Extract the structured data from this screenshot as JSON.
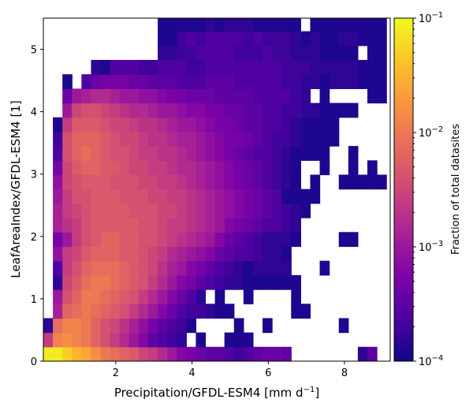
{
  "chart_data": {
    "type": "heatmap",
    "title": "",
    "xlabel": "Precipitation/GFDL-ESM4 [mm d",
    "xlabel_sup": "−1",
    "xlabel_end": "]",
    "ylabel": "LeafAreaIndex/GFDL-ESM4 [1]",
    "xlim": [
      0.1,
      9.2
    ],
    "ylim": [
      0,
      5.5
    ],
    "xticks": [
      {
        "value": 2,
        "label": "2"
      },
      {
        "value": 4,
        "label": "4"
      },
      {
        "value": 6,
        "label": "6"
      },
      {
        "value": 8,
        "label": "8"
      }
    ],
    "yticks": [
      {
        "value": 0,
        "label": "0"
      },
      {
        "value": 1,
        "label": "1"
      },
      {
        "value": 2,
        "label": "2"
      },
      {
        "value": 3,
        "label": "3"
      },
      {
        "value": 4,
        "label": "4"
      },
      {
        "value": 5,
        "label": "5"
      }
    ],
    "colorbar": {
      "label": "Fraction of total datasites",
      "scale": "log",
      "range": [
        0.0001,
        0.1
      ],
      "colormap": "plasma",
      "ticks": [
        {
          "value": 0.0001,
          "base": "10",
          "exp": "−4"
        },
        {
          "value": 0.001,
          "base": "10",
          "exp": "−3"
        },
        {
          "value": 0.01,
          "base": "10",
          "exp": "−2"
        },
        {
          "value": 0.1,
          "base": "10",
          "exp": "−1"
        }
      ]
    },
    "x_bin_edges": [
      0.1,
      0.35,
      0.6,
      0.85,
      1.1,
      1.35,
      1.6,
      1.85,
      2.1,
      2.35,
      2.6,
      2.85,
      3.1,
      3.35,
      3.6,
      3.85,
      4.1,
      4.35,
      4.6,
      4.85,
      5.1,
      5.35,
      5.6,
      5.85,
      6.1,
      6.35,
      6.6,
      6.85,
      7.1,
      7.35,
      7.6,
      7.85,
      8.1,
      8.35,
      8.6,
      8.85,
      9.1
    ],
    "y_bin_edges": [
      0.0,
      0.23,
      0.46,
      0.69,
      0.92,
      1.15,
      1.38,
      1.61,
      1.84,
      2.07,
      2.3,
      2.53,
      2.76,
      2.99,
      3.22,
      3.45,
      3.68,
      3.91,
      4.14,
      4.37,
      4.6,
      4.83,
      5.06,
      5.29,
      5.52
    ],
    "log10_fraction_rows_from_bottom": [
      [
        -1.1,
        -1.1,
        -1.3,
        -1.5,
        -1.6,
        -1.8,
        -2.0,
        -2.1,
        -2.2,
        -2.3,
        -2.5,
        -2.6,
        -2.8,
        -3.0,
        -3.2,
        -3.3,
        -3.4,
        -3.5,
        -3.5,
        -3.6,
        -3.7,
        -3.6,
        -3.5,
        -3.4,
        -3.4,
        -3.5,
        null,
        null,
        null,
        null,
        null,
        null,
        null,
        -3.8,
        -3.5,
        null
      ],
      [
        -2.6,
        -1.9,
        -1.8,
        -1.9,
        -2.0,
        -2.2,
        -2.4,
        -2.6,
        -2.8,
        -3.0,
        -3.2,
        -3.5,
        -3.6,
        -3.7,
        -3.8,
        null,
        -3.9,
        null,
        null,
        -3.9,
        -3.9,
        -3.9,
        null,
        null,
        null,
        null,
        null,
        null,
        null,
        null,
        null,
        null,
        null,
        null,
        null,
        null
      ],
      [
        -3.8,
        -2.1,
        -1.9,
        -1.9,
        -2.0,
        -2.2,
        -2.4,
        -2.5,
        -2.7,
        -2.9,
        -3.1,
        -3.3,
        -3.5,
        -3.6,
        -3.7,
        -3.9,
        null,
        null,
        null,
        null,
        -3.9,
        null,
        null,
        -3.9,
        null,
        null,
        null,
        null,
        null,
        null,
        null,
        -3.9,
        null,
        null,
        null,
        null
      ],
      [
        null,
        -2.9,
        -2.2,
        -2.1,
        -2.0,
        -2.1,
        -2.2,
        -2.3,
        -2.4,
        -2.6,
        -2.8,
        -3.0,
        -3.2,
        -3.4,
        -3.6,
        -3.7,
        -3.7,
        -3.8,
        -3.9,
        -3.9,
        null,
        null,
        null,
        null,
        null,
        null,
        -3.9,
        -3.9,
        null,
        null,
        null,
        null,
        null,
        null,
        null,
        null
      ],
      [
        null,
        -3.0,
        -2.4,
        -2.2,
        -2.0,
        -2.0,
        -2.1,
        -2.2,
        -2.3,
        -2.4,
        -2.6,
        -2.8,
        -3.0,
        -3.2,
        -3.4,
        -3.6,
        -3.8,
        null,
        -3.9,
        null,
        null,
        -3.9,
        null,
        null,
        null,
        null,
        -3.9,
        null,
        null,
        null,
        null,
        null,
        null,
        null,
        null,
        null
      ],
      [
        null,
        -3.8,
        -2.5,
        -2.3,
        -2.1,
        -2.0,
        -2.0,
        -2.1,
        -2.2,
        -2.3,
        -2.4,
        -2.6,
        -2.8,
        -3.0,
        -3.2,
        -3.3,
        -3.5,
        -3.6,
        -3.7,
        -3.8,
        -3.8,
        -3.9,
        -3.9,
        -3.9,
        -3.9,
        -3.9,
        -3.9,
        null,
        null,
        null,
        null,
        null,
        null,
        null,
        null,
        null
      ],
      [
        null,
        -3.6,
        -2.6,
        -2.4,
        -2.2,
        -2.1,
        -2.1,
        -2.1,
        -2.2,
        -2.3,
        -2.4,
        -2.5,
        -2.7,
        -2.9,
        -3.0,
        -3.2,
        -3.3,
        -3.5,
        -3.6,
        -3.7,
        -3.8,
        -3.9,
        -3.8,
        -3.8,
        -3.8,
        -3.8,
        null,
        null,
        null,
        -3.9,
        null,
        null,
        null,
        null,
        null,
        null
      ],
      [
        null,
        -3.1,
        -2.6,
        -2.5,
        -2.3,
        -2.2,
        -2.2,
        -2.2,
        -2.3,
        -2.3,
        -2.4,
        -2.5,
        -2.6,
        -2.8,
        -2.9,
        -3.0,
        -3.1,
        -3.2,
        -3.4,
        -3.5,
        -3.6,
        -3.6,
        -3.7,
        -3.8,
        -3.8,
        -3.9,
        null,
        null,
        null,
        null,
        null,
        null,
        null,
        null,
        null,
        null
      ],
      [
        null,
        -3.3,
        -3.0,
        -2.6,
        -2.4,
        -2.3,
        -2.2,
        -2.2,
        -2.3,
        -2.3,
        -2.4,
        -2.4,
        -2.5,
        -2.6,
        -2.7,
        -2.8,
        -2.9,
        -3.0,
        -3.2,
        -3.4,
        -3.5,
        -3.6,
        -3.7,
        -3.8,
        -3.8,
        -3.8,
        -3.9,
        null,
        null,
        null,
        null,
        -3.9,
        -3.9,
        null,
        null,
        null
      ],
      [
        null,
        -2.9,
        -2.7,
        -2.6,
        -2.4,
        -2.3,
        -2.3,
        -2.3,
        -2.3,
        -2.3,
        -2.4,
        -2.4,
        -2.5,
        -2.6,
        -2.6,
        -2.7,
        -2.8,
        -2.9,
        -3.0,
        -3.2,
        -3.3,
        -3.4,
        -3.5,
        -3.6,
        -3.6,
        -3.7,
        -3.8,
        null,
        null,
        null,
        null,
        null,
        null,
        null,
        null,
        null
      ],
      [
        null,
        -2.9,
        -2.6,
        -2.5,
        -2.4,
        -2.3,
        -2.3,
        -2.3,
        -2.3,
        -2.4,
        -2.4,
        -2.4,
        -2.5,
        -2.5,
        -2.6,
        -2.7,
        -2.8,
        -2.9,
        -3.0,
        -3.1,
        -3.2,
        -3.3,
        -3.4,
        -3.5,
        -3.6,
        -3.7,
        -3.8,
        -3.9,
        null,
        null,
        null,
        null,
        null,
        null,
        null,
        null
      ],
      [
        null,
        -3.0,
        -2.6,
        -2.4,
        -2.4,
        -2.3,
        -2.3,
        -2.3,
        -2.4,
        -2.4,
        -2.4,
        -2.5,
        -2.5,
        -2.6,
        -2.6,
        -2.7,
        -2.8,
        -2.9,
        -3.0,
        -3.1,
        -3.2,
        -3.3,
        -3.4,
        -3.5,
        -3.6,
        -3.9,
        -3.9,
        -3.9,
        -3.9,
        null,
        null,
        null,
        null,
        null,
        null,
        null
      ],
      [
        null,
        -3.1,
        -2.5,
        -2.4,
        -2.3,
        -2.3,
        -2.3,
        -2.4,
        -2.4,
        -2.4,
        -2.5,
        -2.5,
        -2.6,
        -2.6,
        -2.7,
        -2.8,
        -2.9,
        -3.0,
        -3.1,
        -3.2,
        -3.3,
        -3.4,
        -3.5,
        -3.6,
        -3.7,
        -3.8,
        -3.9,
        null,
        -3.9,
        null,
        null,
        -3.9,
        -3.9,
        -3.9,
        -3.9,
        -3.9
      ],
      [
        null,
        -3.3,
        -2.5,
        -2.3,
        -2.2,
        -2.2,
        -2.3,
        -2.3,
        -2.4,
        -2.5,
        -2.5,
        -2.6,
        -2.6,
        -2.7,
        -2.8,
        -2.8,
        -2.9,
        -3.0,
        -3.1,
        -3.2,
        -3.3,
        -3.4,
        -3.5,
        -3.6,
        -3.7,
        -3.8,
        -3.9,
        null,
        null,
        -3.9,
        null,
        null,
        -3.9,
        null,
        -3.9,
        null
      ],
      [
        null,
        -3.6,
        -2.4,
        -2.2,
        -2.1,
        -2.2,
        -2.3,
        -2.4,
        -2.4,
        -2.5,
        -2.6,
        -2.6,
        -2.7,
        -2.7,
        -2.8,
        -2.9,
        -3.0,
        -3.1,
        -3.2,
        -3.3,
        -3.4,
        -3.5,
        -3.6,
        -3.6,
        -3.7,
        -3.8,
        -3.9,
        -3.9,
        -3.9,
        -3.9,
        null,
        null,
        -3.9,
        null,
        null,
        null
      ],
      [
        null,
        -3.7,
        -2.4,
        -2.2,
        -2.2,
        -2.2,
        -2.3,
        -2.4,
        -2.5,
        -2.5,
        -2.6,
        -2.7,
        -2.7,
        -2.8,
        -2.9,
        -2.9,
        -3.0,
        -3.1,
        -3.2,
        -3.3,
        -3.3,
        -3.4,
        -3.5,
        -3.6,
        -3.7,
        -3.7,
        -3.8,
        -3.9,
        -3.9,
        -3.9,
        -3.9,
        null,
        null,
        null,
        null,
        null
      ],
      [
        null,
        -3.9,
        -2.6,
        -2.3,
        -2.3,
        -2.3,
        -2.4,
        -2.5,
        -2.5,
        -2.6,
        -2.7,
        -2.7,
        -2.8,
        -2.9,
        -3.0,
        -3.0,
        -3.1,
        -3.2,
        -3.3,
        -3.3,
        -3.4,
        -3.5,
        -3.5,
        -3.6,
        -3.6,
        -3.7,
        -3.8,
        -3.9,
        -3.9,
        -3.9,
        -3.9,
        null,
        null,
        null,
        null,
        null
      ],
      [
        null,
        null,
        -3.0,
        -2.5,
        -2.4,
        -2.4,
        -2.5,
        -2.6,
        -2.7,
        -2.8,
        -2.8,
        -2.9,
        -3.0,
        -3.0,
        -3.1,
        -3.2,
        -3.2,
        -3.3,
        -3.3,
        -3.4,
        -3.4,
        -3.5,
        -3.5,
        -3.6,
        -3.6,
        -3.7,
        -3.7,
        -3.8,
        -3.8,
        -3.9,
        -3.9,
        -3.9,
        -3.9,
        null,
        null,
        null
      ],
      [
        null,
        null,
        -3.4,
        -3.0,
        -2.9,
        -2.8,
        -2.8,
        -2.9,
        -3.0,
        -3.0,
        -3.1,
        -3.1,
        -3.2,
        -3.3,
        -3.3,
        -3.4,
        -3.4,
        -3.4,
        -3.5,
        -3.5,
        -3.5,
        -3.5,
        -3.6,
        -3.6,
        -3.6,
        -3.6,
        -3.7,
        -3.8,
        null,
        -3.9,
        null,
        null,
        null,
        null,
        -3.9,
        -3.9
      ],
      [
        null,
        null,
        -3.9,
        null,
        -3.6,
        -3.4,
        -3.3,
        -3.3,
        -3.3,
        -3.4,
        -3.4,
        -3.5,
        -3.5,
        -3.5,
        -3.6,
        -3.6,
        -3.6,
        -3.5,
        -3.5,
        -3.5,
        -3.6,
        -3.6,
        -3.6,
        -3.6,
        -3.6,
        -3.7,
        -3.7,
        -3.8,
        -3.8,
        -3.9,
        -3.8,
        -3.8,
        -3.8,
        -3.9,
        -3.9,
        -3.9
      ],
      [
        null,
        null,
        null,
        null,
        null,
        -3.8,
        -3.9,
        -3.6,
        -3.6,
        -3.6,
        -3.7,
        -3.7,
        -3.6,
        -3.6,
        -3.6,
        -3.7,
        -3.7,
        -3.6,
        -3.6,
        -3.6,
        -3.6,
        -3.6,
        -3.6,
        -3.6,
        -3.6,
        -3.7,
        -3.7,
        -3.7,
        -3.8,
        -3.8,
        -3.8,
        -3.8,
        -3.8,
        -3.9,
        -3.9,
        -3.9
      ],
      [
        null,
        null,
        null,
        null,
        null,
        null,
        null,
        null,
        null,
        null,
        null,
        null,
        -3.8,
        -3.8,
        -3.7,
        -3.7,
        -3.6,
        -3.6,
        -3.6,
        -3.6,
        -3.7,
        -3.7,
        -3.7,
        -3.6,
        -3.7,
        -3.7,
        -3.8,
        -3.8,
        -3.8,
        -3.9,
        -3.9,
        -3.9,
        -3.9,
        null,
        -3.9,
        -3.9
      ],
      [
        null,
        null,
        null,
        null,
        null,
        null,
        null,
        null,
        null,
        null,
        null,
        null,
        -3.9,
        -3.9,
        -3.7,
        -3.6,
        -3.7,
        -3.6,
        -3.6,
        -3.6,
        -3.6,
        -3.7,
        -3.6,
        -3.7,
        -3.7,
        -3.7,
        -3.8,
        -3.9,
        -3.8,
        -3.9,
        -3.9,
        -3.8,
        -3.8,
        -3.9,
        -3.9,
        -3.9
      ],
      [
        null,
        null,
        null,
        null,
        null,
        null,
        null,
        null,
        null,
        null,
        null,
        null,
        -3.9,
        -3.9,
        -3.9,
        -3.9,
        -3.9,
        -3.8,
        -3.9,
        -3.8,
        -3.8,
        -3.8,
        -3.9,
        -3.9,
        -3.9,
        -3.9,
        -3.9,
        null,
        -3.9,
        -3.9,
        -3.9,
        -3.9,
        -3.9,
        -3.9,
        -3.9,
        -3.9
      ]
    ]
  }
}
